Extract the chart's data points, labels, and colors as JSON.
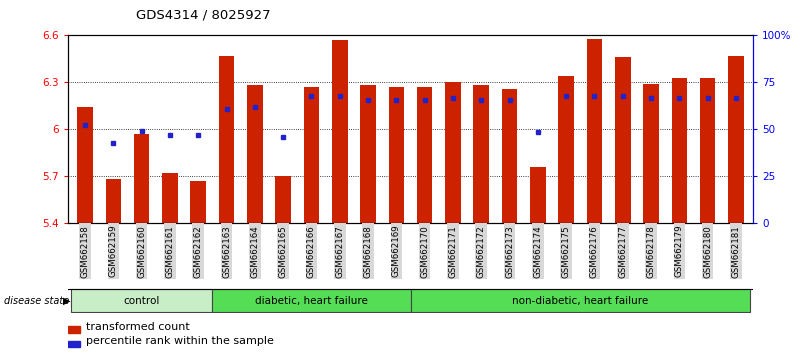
{
  "title": "GDS4314 / 8025927",
  "samples": [
    "GSM662158",
    "GSM662159",
    "GSM662160",
    "GSM662161",
    "GSM662162",
    "GSM662163",
    "GSM662164",
    "GSM662165",
    "GSM662166",
    "GSM662167",
    "GSM662168",
    "GSM662169",
    "GSM662170",
    "GSM662171",
    "GSM662172",
    "GSM662173",
    "GSM662174",
    "GSM662175",
    "GSM662176",
    "GSM662177",
    "GSM662178",
    "GSM662179",
    "GSM662180",
    "GSM662181"
  ],
  "red_values": [
    6.14,
    5.68,
    5.97,
    5.72,
    5.67,
    6.47,
    6.28,
    5.7,
    6.27,
    6.57,
    6.28,
    6.27,
    6.27,
    6.3,
    6.28,
    6.26,
    5.76,
    6.34,
    6.58,
    6.46,
    6.29,
    6.33,
    6.33,
    6.47
  ],
  "blue_values": [
    6.03,
    5.91,
    5.99,
    5.96,
    5.96,
    6.13,
    6.14,
    5.95,
    6.21,
    6.21,
    6.19,
    6.19,
    6.19,
    6.2,
    6.19,
    6.19,
    5.98,
    6.21,
    6.21,
    6.21,
    6.2,
    6.2,
    6.2,
    6.2
  ],
  "ylim": [
    5.4,
    6.6
  ],
  "yticks_left": [
    5.4,
    5.7,
    6.0,
    6.3,
    6.6
  ],
  "ytick_labels_left": [
    "5.4",
    "5.7",
    "6",
    "6.3",
    "6.6"
  ],
  "yticks_right": [
    0,
    25,
    50,
    75,
    100
  ],
  "ytick_labels_right": [
    "0",
    "25",
    "50",
    "75",
    "100%"
  ],
  "bar_color": "#cc2200",
  "dot_color": "#2222cc",
  "legend_items": [
    "transformed count",
    "percentile rank within the sample"
  ],
  "disease_state_label": "disease state",
  "groups": [
    {
      "label": "control",
      "start": 0,
      "end": 5,
      "color": "#c8eec8"
    },
    {
      "label": "diabetic, heart failure",
      "start": 5,
      "end": 12,
      "color": "#55dd55"
    },
    {
      "label": "non-diabetic, heart failure",
      "start": 12,
      "end": 24,
      "color": "#55dd55"
    }
  ]
}
